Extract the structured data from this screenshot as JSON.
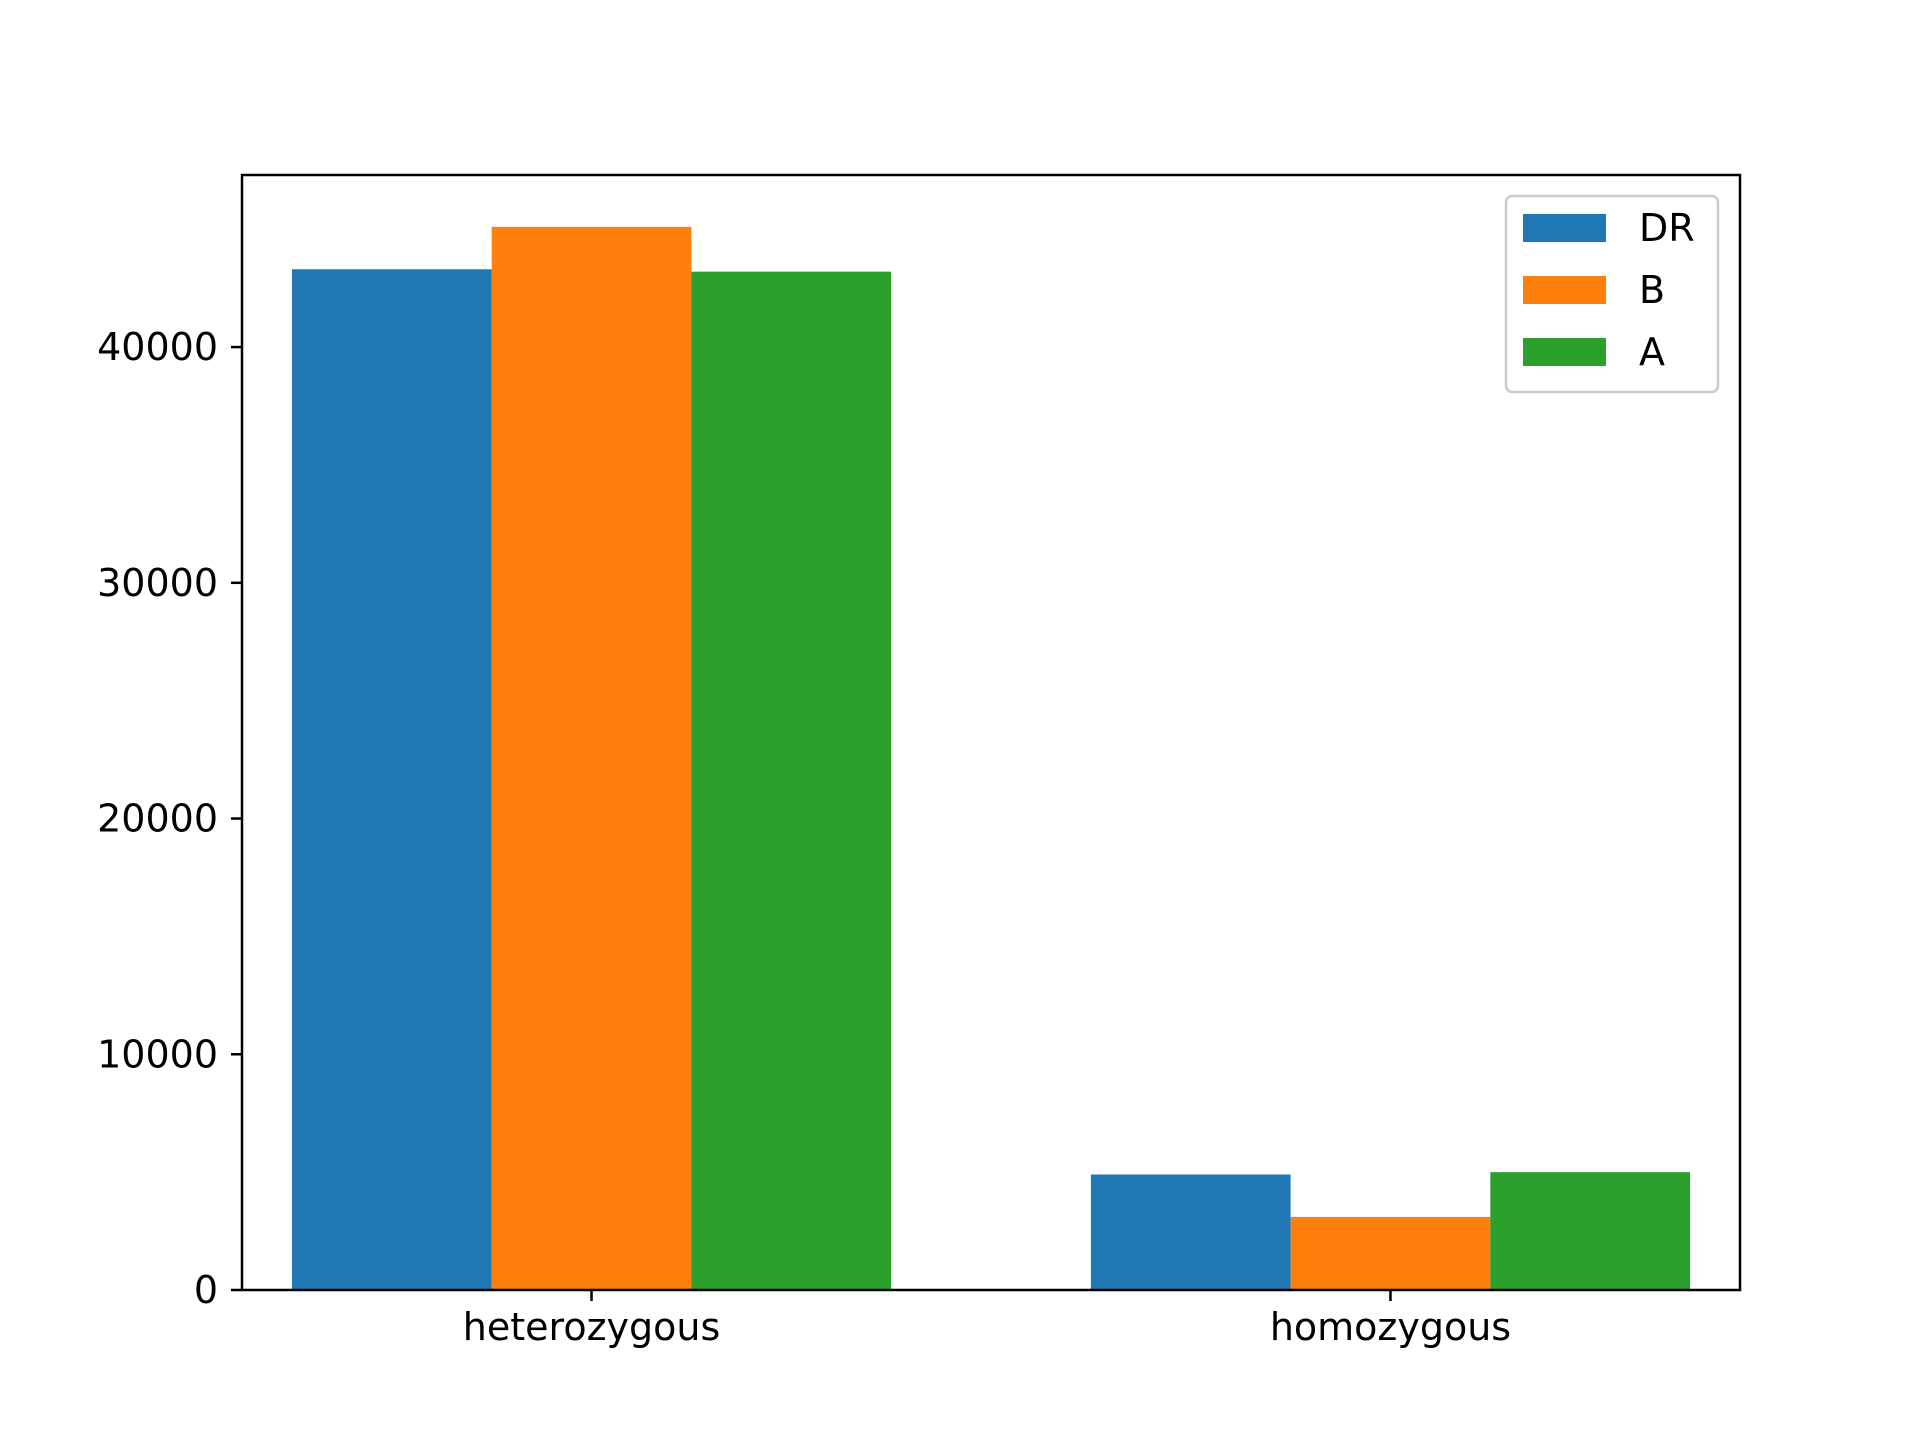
{
  "chart_data": {
    "type": "bar",
    "categories": [
      "heterozygous",
      "homozygous"
    ],
    "series": [
      {
        "name": "DR",
        "values": [
          43300,
          4900
        ],
        "color": "#1f77b4"
      },
      {
        "name": "B",
        "values": [
          45100,
          3100
        ],
        "color": "#ff7f0e"
      },
      {
        "name": "A",
        "values": [
          43200,
          5000
        ],
        "color": "#2ca02c"
      }
    ],
    "title": "",
    "xlabel": "",
    "ylabel": "",
    "ylim": [
      0,
      47300
    ],
    "yticks": [
      0,
      10000,
      20000,
      30000,
      40000
    ],
    "ytick_labels": [
      "0",
      "10000",
      "20000",
      "30000",
      "40000"
    ],
    "grid": false,
    "legend_position": "top-right"
  }
}
